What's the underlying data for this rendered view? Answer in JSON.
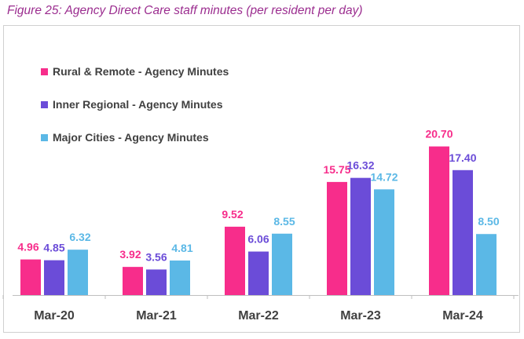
{
  "title": "Figure 25: Agency Direct Care staff minutes (per resident per day)",
  "colors": {
    "rural": "#f72d8b",
    "inner": "#6b4cd8",
    "major": "#5bb8e6",
    "axis": "#bfbfbf",
    "title": "#9b2d8f"
  },
  "chart_data": {
    "type": "bar",
    "title": "Figure 25: Agency Direct Care staff minutes (per resident per day)",
    "xlabel": "",
    "ylabel": "",
    "ylim": [
      0,
      25
    ],
    "grid": false,
    "legend_position": "top-left",
    "categories": [
      "Mar-20",
      "Mar-21",
      "Mar-22",
      "Mar-23",
      "Mar-24"
    ],
    "series": [
      {
        "name": "Rural & Remote - Agency Minutes",
        "values": [
          4.96,
          3.92,
          9.52,
          15.75,
          20.7
        ],
        "labels": [
          "4.96",
          "3.92",
          "9.52",
          "15.75",
          "20.70"
        ],
        "color": "#f72d8b"
      },
      {
        "name": "Inner Regional - Agency Minutes",
        "values": [
          4.85,
          3.56,
          6.06,
          16.32,
          17.4
        ],
        "labels": [
          "4.85",
          "3.56",
          "6.06",
          "16.32",
          "17.40"
        ],
        "color": "#6b4cd8"
      },
      {
        "name": "Major Cities - Agency Minutes",
        "values": [
          6.32,
          4.81,
          8.55,
          14.72,
          8.5
        ],
        "labels": [
          "6.32",
          "4.81",
          "8.55",
          "14.72",
          "8.50"
        ],
        "color": "#5bb8e6"
      }
    ]
  }
}
